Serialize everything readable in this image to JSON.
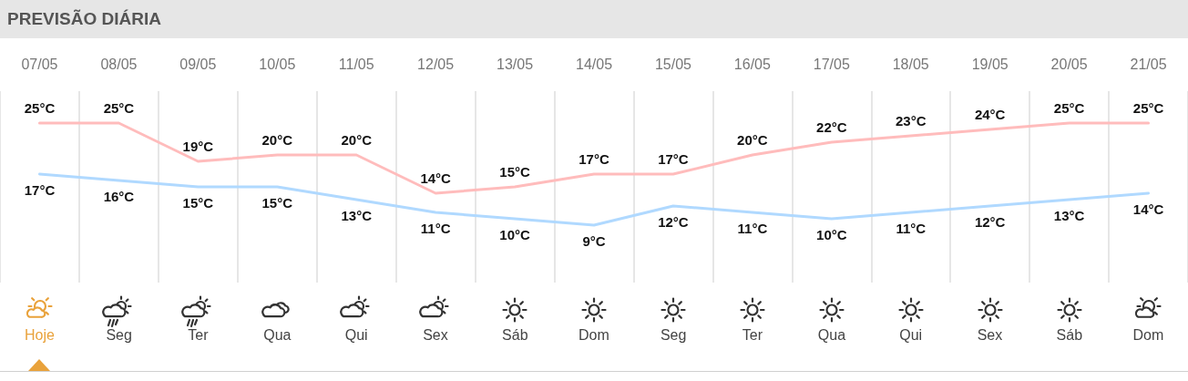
{
  "chart_data": {
    "type": "line",
    "title": "PREVISÃO DIÁRIA",
    "categories": [
      "07/05",
      "08/05",
      "09/05",
      "10/05",
      "11/05",
      "12/05",
      "13/05",
      "14/05",
      "15/05",
      "16/05",
      "17/05",
      "18/05",
      "19/05",
      "20/05",
      "21/05"
    ],
    "series": [
      {
        "color": "#ffbcbc",
        "values": [
          25,
          25,
          19,
          20,
          20,
          14,
          15,
          17,
          17,
          20,
          22,
          23,
          24,
          25,
          25
        ],
        "value_labels": [
          "25°C",
          "25°C",
          "19°C",
          "20°C",
          "20°C",
          "14°C",
          "15°C",
          "17°C",
          "17°C",
          "20°C",
          "22°C",
          "23°C",
          "24°C",
          "25°C",
          "25°C"
        ]
      },
      {
        "color": "#b0d9ff",
        "values": [
          17,
          16,
          15,
          15,
          13,
          11,
          10,
          9,
          12,
          11,
          10,
          11,
          12,
          13,
          14
        ],
        "value_labels": [
          "17°C",
          "16°C",
          "15°C",
          "15°C",
          "13°C",
          "11°C",
          "10°C",
          "9°C",
          "12°C",
          "11°C",
          "10°C",
          "11°C",
          "12°C",
          "13°C",
          "14°C"
        ]
      }
    ],
    "ylim": [
      0,
      30
    ],
    "annotations": [
      "Hoje",
      "Seg",
      "Ter",
      "Qua",
      "Qui",
      "Sex",
      "Sáb",
      "Dom",
      "Seg",
      "Ter",
      "Qua",
      "Qui",
      "Sex",
      "Sáb",
      "Dom"
    ],
    "grid": "x",
    "marker": "none",
    "line_style": "solid",
    "tick_labels": "x"
  }
}
